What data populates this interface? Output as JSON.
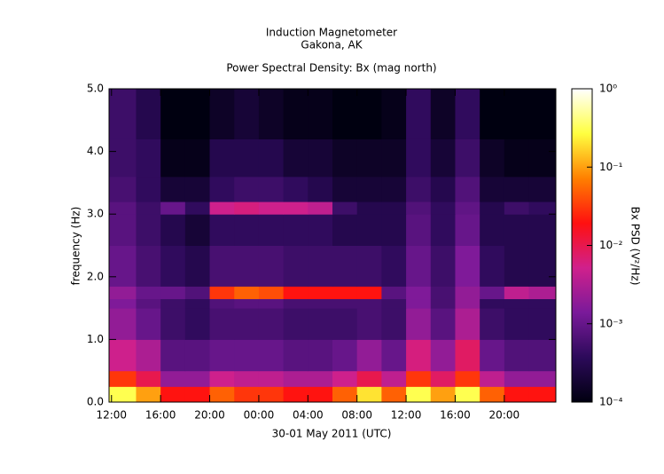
{
  "chart_data": {
    "type": "spectrogram",
    "title": "Induction Magnetometer",
    "subtitle": "Gakona, AK",
    "plot_title": "Power Spectral Density: Bx (mag north)",
    "x_label": "30-01 May 2011 (UTC)",
    "y_label": "frequency (Hz)",
    "colorbar_label": "Bx PSD (V²/Hz)",
    "xlim": [
      11.8,
      48.2
    ],
    "xticks": [
      {
        "value": 12,
        "label": "12:00"
      },
      {
        "value": 16,
        "label": "16:00"
      },
      {
        "value": 20,
        "label": "20:00"
      },
      {
        "value": 24,
        "label": "00:00"
      },
      {
        "value": 28,
        "label": "04:00"
      },
      {
        "value": 32,
        "label": "08:00"
      },
      {
        "value": 36,
        "label": "12:00"
      },
      {
        "value": 40,
        "label": "16:00"
      },
      {
        "value": 44,
        "label": "20:00"
      }
    ],
    "ylim": [
      0,
      5
    ],
    "yticks": [
      {
        "value": 0,
        "label": "0.0"
      },
      {
        "value": 1,
        "label": "1.0"
      },
      {
        "value": 2,
        "label": "2.0"
      },
      {
        "value": 3,
        "label": "3.0"
      },
      {
        "value": 4,
        "label": "4.0"
      },
      {
        "value": 5,
        "label": "5.0"
      }
    ],
    "clim": [
      0.0001,
      1
    ],
    "clog": true,
    "cticks": [
      {
        "value": 0.0001,
        "label": "10⁻⁴"
      },
      {
        "value": 0.001,
        "label": "10⁻³"
      },
      {
        "value": 0.01,
        "label": "10⁻²"
      },
      {
        "value": 0.1,
        "label": "10⁻¹"
      },
      {
        "value": 1,
        "label": "10⁰"
      }
    ],
    "colormap": [
      "#000010",
      "#2c0a5a",
      "#7a1a9a",
      "#d0208c",
      "#ff1010",
      "#ff8000",
      "#ffff40",
      "#ffffff"
    ],
    "x_bins": [
      11.8,
      14,
      16,
      18,
      20,
      22,
      24,
      26,
      28,
      30,
      32,
      34,
      36,
      38,
      40,
      42,
      44,
      46,
      48.2
    ],
    "y_bins": [
      0,
      0.25,
      0.5,
      1.0,
      1.5,
      1.65,
      1.85,
      2.5,
      3.0,
      3.2,
      3.6,
      4.2,
      5.0
    ],
    "values": [
      [
        0.3,
        0.1,
        0.02,
        0.02,
        0.05,
        0.03,
        0.03,
        0.02,
        0.02,
        0.05,
        0.2,
        0.05,
        0.3,
        0.1,
        0.3,
        0.05,
        0.02,
        0.02
      ],
      [
        0.03,
        0.01,
        0.002,
        0.002,
        0.005,
        0.004,
        0.004,
        0.003,
        0.003,
        0.005,
        0.01,
        0.004,
        0.03,
        0.008,
        0.03,
        0.004,
        0.002,
        0.002
      ],
      [
        0.005,
        0.003,
        0.0008,
        0.0008,
        0.001,
        0.001,
        0.001,
        0.0008,
        0.0008,
        0.001,
        0.002,
        0.001,
        0.006,
        0.002,
        0.008,
        0.001,
        0.0007,
        0.0007
      ],
      [
        0.002,
        0.001,
        0.0005,
        0.0004,
        0.0006,
        0.0006,
        0.0006,
        0.0005,
        0.0005,
        0.0005,
        0.0006,
        0.0005,
        0.002,
        0.0008,
        0.003,
        0.0005,
        0.0004,
        0.0004
      ],
      [
        0.0015,
        0.0008,
        0.0005,
        0.0004,
        0.0007,
        0.0008,
        0.0008,
        0.0006,
        0.0006,
        0.0006,
        0.0006,
        0.0005,
        0.0015,
        0.0006,
        0.002,
        0.0004,
        0.0004,
        0.0004
      ],
      [
        0.002,
        0.001,
        0.001,
        0.0007,
        0.03,
        0.05,
        0.04,
        0.02,
        0.02,
        0.02,
        0.02,
        0.0008,
        0.0015,
        0.0006,
        0.002,
        0.001,
        0.004,
        0.003
      ],
      [
        0.001,
        0.0006,
        0.0004,
        0.0003,
        0.0006,
        0.0006,
        0.0006,
        0.0005,
        0.0005,
        0.0005,
        0.0005,
        0.0004,
        0.001,
        0.0005,
        0.0015,
        0.0004,
        0.0003,
        0.0003
      ],
      [
        0.0008,
        0.0005,
        0.0003,
        0.0002,
        0.0004,
        0.0004,
        0.0004,
        0.0004,
        0.0004,
        0.0003,
        0.0003,
        0.0003,
        0.0008,
        0.0004,
        0.001,
        0.0003,
        0.0003,
        0.0003
      ],
      [
        0.0008,
        0.0005,
        0.001,
        0.0004,
        0.005,
        0.006,
        0.005,
        0.005,
        0.004,
        0.0005,
        0.0003,
        0.0003,
        0.0007,
        0.0004,
        0.0009,
        0.0003,
        0.0005,
        0.0004
      ],
      [
        0.0006,
        0.0004,
        0.0002,
        0.0002,
        0.0004,
        0.0005,
        0.0005,
        0.0004,
        0.0003,
        0.0002,
        0.0002,
        0.0002,
        0.0005,
        0.0003,
        0.0007,
        0.0002,
        0.0002,
        0.0002
      ],
      [
        0.0005,
        0.0004,
        0.00012,
        0.00012,
        0.0003,
        0.0003,
        0.0003,
        0.0002,
        0.0002,
        0.00015,
        0.00015,
        0.00015,
        0.0004,
        0.0002,
        0.0005,
        0.00015,
        0.00012,
        0.00012
      ],
      [
        0.0005,
        0.0003,
        0.0001,
        0.0001,
        0.00015,
        0.0002,
        0.00015,
        0.00012,
        0.00012,
        0.0001,
        0.0001,
        0.00012,
        0.0004,
        0.00015,
        0.0004,
        0.0001,
        0.0001,
        0.0001
      ]
    ]
  }
}
